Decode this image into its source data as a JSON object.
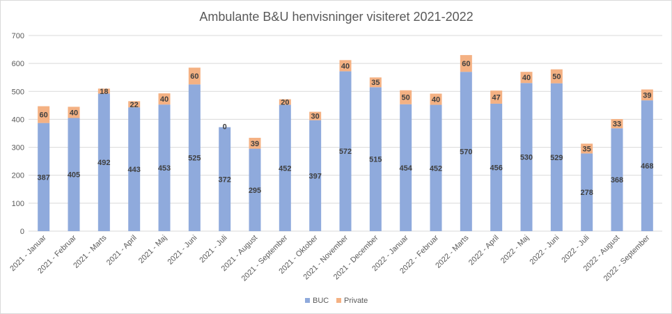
{
  "chart_data": {
    "type": "bar",
    "stacked": true,
    "title": "Ambulante B&U henvisninger visiteret 2021-2022",
    "xlabel": "",
    "ylabel": "",
    "ylim": [
      0,
      700
    ],
    "yticks": [
      0,
      100,
      200,
      300,
      400,
      500,
      600,
      700
    ],
    "grid": true,
    "legend_position": "bottom",
    "categories": [
      "2021 - Januar",
      "2021 - Februar",
      "2021 - Marts",
      "2021 - April",
      "2021 - Maj",
      "2021 - Juni",
      "2021 - Juli",
      "2021 - August",
      "2021 - September",
      "2021 - Oktober",
      "2021 - November",
      "2021 - December",
      "2022 - Januar",
      "2022 - Februar",
      "2022 - Marts",
      "2022 - April",
      "2022 - Maj",
      "2022 - Juni",
      "2022 - Juli",
      "2022 - August",
      "2022 - September"
    ],
    "series": [
      {
        "name": "BUC",
        "color": "#8faadc",
        "values": [
          387,
          405,
          492,
          443,
          453,
          525,
          372,
          295,
          452,
          397,
          572,
          515,
          454,
          452,
          570,
          456,
          530,
          529,
          278,
          368,
          468
        ]
      },
      {
        "name": "Private",
        "color": "#f4b183",
        "values": [
          60,
          40,
          18,
          22,
          40,
          60,
          0,
          39,
          20,
          30,
          40,
          35,
          50,
          40,
          60,
          47,
          40,
          50,
          35,
          33,
          39
        ]
      }
    ]
  }
}
